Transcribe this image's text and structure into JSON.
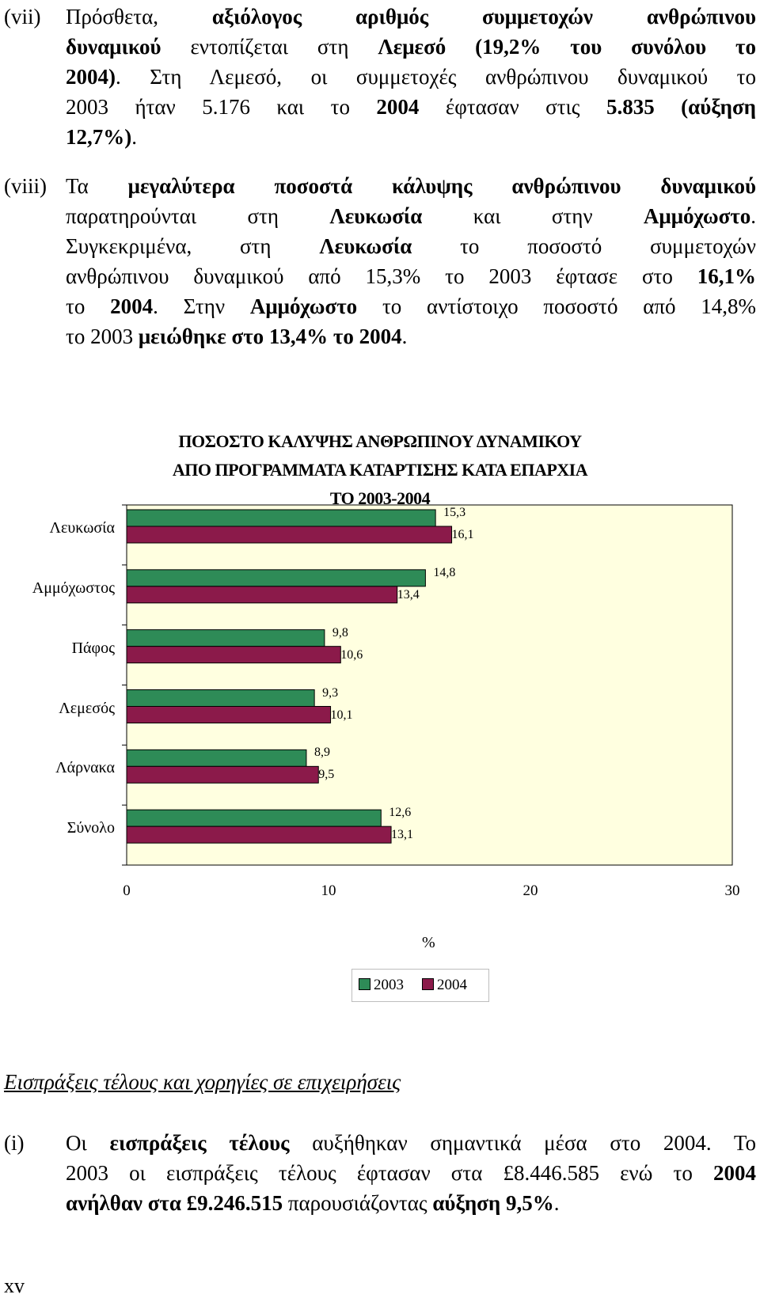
{
  "paragraphs": [
    {
      "num": "(vii)",
      "lines": [
        [
          [
            "Πρόσθετα, ",
            false
          ],
          [
            "αξιόλογος αριθμός συμμετοχών ανθρώπινου",
            true
          ]
        ],
        [
          [
            "δυναμικού",
            true
          ],
          [
            " εντοπίζεται στη ",
            false
          ],
          [
            "Λεμεσό (19,2% του συνόλου το",
            true
          ]
        ],
        [
          [
            "2004)",
            true
          ],
          [
            ". Στη Λεμεσό, οι συμμετοχές ανθρώπινου δυναμικού το",
            false
          ]
        ],
        [
          [
            "2003 ήταν 5.176 και το ",
            false
          ],
          [
            "2004",
            true
          ],
          [
            " έφτασαν στις ",
            false
          ],
          [
            "5.835 (αύξηση",
            true
          ]
        ],
        [
          [
            "12,7%)",
            true
          ],
          [
            ".",
            false
          ]
        ]
      ]
    },
    {
      "num": "(viii)",
      "lines": [
        [
          [
            "Τα ",
            false
          ],
          [
            "μεγαλύτερα ποσοστά κάλυψης ανθρώπινου δυναμικού",
            true
          ]
        ],
        [
          [
            "παρατηρούνται στη ",
            false
          ],
          [
            "Λευκωσία",
            true
          ],
          [
            " και στην ",
            false
          ],
          [
            "Αμμόχωστο",
            true
          ],
          [
            ".",
            false
          ]
        ],
        [
          [
            "Συγκεκριμένα, στη ",
            false
          ],
          [
            "Λευκωσία",
            true
          ],
          [
            " το ποσοστό συμμετοχών",
            false
          ]
        ],
        [
          [
            "ανθρώπινου δυναμικού από 15,3% το 2003 έφτασε στο ",
            false
          ],
          [
            "16,1%",
            true
          ]
        ],
        [
          [
            "το ",
            false
          ],
          [
            "2004",
            true
          ],
          [
            ". Στην ",
            false
          ],
          [
            "Αμμόχωστο",
            true
          ],
          [
            " το αντίστοιχο ποσοστό από 14,8%",
            false
          ]
        ],
        [
          [
            "το 2003 ",
            false
          ],
          [
            "μειώθηκε στο 13,4% το 2004",
            true
          ],
          [
            ".",
            false
          ]
        ]
      ]
    },
    {
      "num": "(i)",
      "lines": [
        [
          [
            "Οι ",
            false
          ],
          [
            "εισπράξεις τέλους",
            true
          ],
          [
            " αυξήθηκαν σημαντικά μέσα στο 2004. Το",
            false
          ]
        ],
        [
          [
            "2003 οι εισπράξεις τέλους έφτασαν στα £8.446.585 ενώ το ",
            false
          ],
          [
            "2004",
            true
          ]
        ],
        [
          [
            "ανήλθαν στα £9.246.515",
            true
          ],
          [
            " παρουσιάζοντας ",
            false
          ],
          [
            "αύξηση 9,5%",
            true
          ],
          [
            ".",
            false
          ]
        ]
      ]
    }
  ],
  "section_heading": "Εισπράξεις τέλους και χορηγίες σε επιχειρήσεις",
  "page_number": "xv",
  "chart_data": {
    "type": "bar",
    "orientation": "horizontal",
    "title": "ΠΟΣΟΣΤΟ ΚΑΛΥΨΗΣ ΑΝΘΡΩΠΙΝΟΥ ΔΥΝΑΜΙΚΟΥ ΑΠΟ ΠΡΟΓΡΑΜΜΑΤΑ ΚΑΤΑΡΤΙΣΗΣ ΚΑΤΑ ΕΠΑΡΧΙΑ ΤΟ 2003-2004",
    "title_lines": [
      "ΠΟΣΟΣΤΟ ΚΑΛΥΨΗΣ ΑΝΘΡΩΠΙΝΟΥ ΔΥΝΑΜΙΚΟΥ",
      "ΑΠΟ ΠΡΟΓΡΑΜΜΑΤΑ ΚΑΤΑΡΤΙΣΗΣ ΚΑΤΑ ΕΠΑΡΧΙΑ",
      "ΤΟ 2003-2004"
    ],
    "categories": [
      "Λευκωσία",
      "Αμμόχωστος",
      "Πάφος",
      "Λεμεσός",
      "Λάρνακα",
      "Σύνολο"
    ],
    "series": [
      {
        "name": "2003",
        "color": "#2e8b57",
        "values": [
          15.3,
          14.8,
          9.8,
          9.3,
          8.9,
          12.6
        ],
        "labels": [
          "15,3",
          "14,8",
          "9,8",
          "9,3",
          "8,9",
          "12,6"
        ]
      },
      {
        "name": "2004",
        "color": "#8b1a4a",
        "values": [
          16.1,
          13.4,
          10.6,
          10.1,
          9.5,
          13.1
        ],
        "labels": [
          "16,1",
          "13,4",
          "10,6",
          "10,1",
          "9,5",
          "13,1"
        ]
      }
    ],
    "xlabel": "%",
    "xlim": [
      0,
      30
    ],
    "xticks": [
      0,
      10,
      20,
      30
    ],
    "plot_background": "#ffffe0",
    "legend_position": "bottom"
  }
}
